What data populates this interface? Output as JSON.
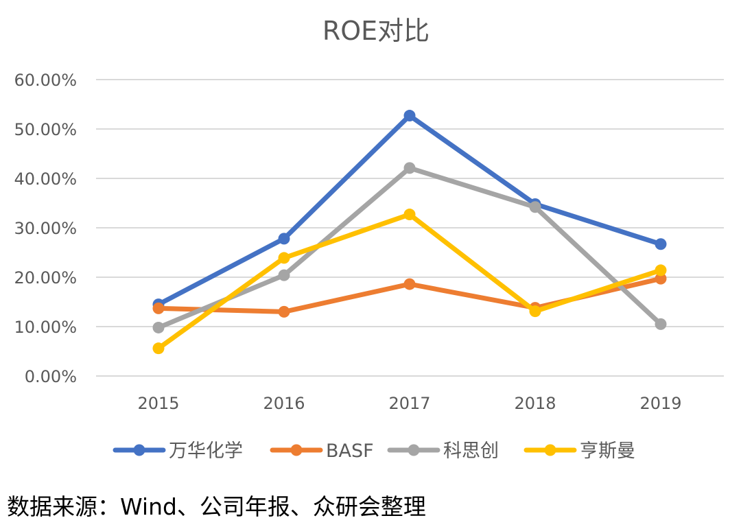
{
  "chart_data": {
    "type": "line",
    "title": "ROE对比",
    "categories": [
      "2015",
      "2016",
      "2017",
      "2018",
      "2019"
    ],
    "y_ticks": [
      "0.00%",
      "10.00%",
      "20.00%",
      "30.00%",
      "40.00%",
      "50.00%",
      "60.00%"
    ],
    "ylim": [
      0,
      0.6
    ],
    "grid": true,
    "legend_position": "bottom",
    "series": [
      {
        "name": "万华化学",
        "color": "#4472C4",
        "values": [
          0.145,
          0.278,
          0.527,
          0.348,
          0.267
        ]
      },
      {
        "name": "BASF",
        "color": "#ED7D31",
        "values": [
          0.137,
          0.13,
          0.186,
          0.138,
          0.197
        ]
      },
      {
        "name": "科思创",
        "color": "#A5A5A5",
        "values": [
          0.098,
          0.204,
          0.421,
          0.342,
          0.105
        ]
      },
      {
        "name": "亨斯曼",
        "color": "#FFC000",
        "values": [
          0.056,
          0.239,
          0.327,
          0.131,
          0.214
        ]
      }
    ]
  },
  "source_note": "数据来源：Wind、公司年报、众研会整理"
}
